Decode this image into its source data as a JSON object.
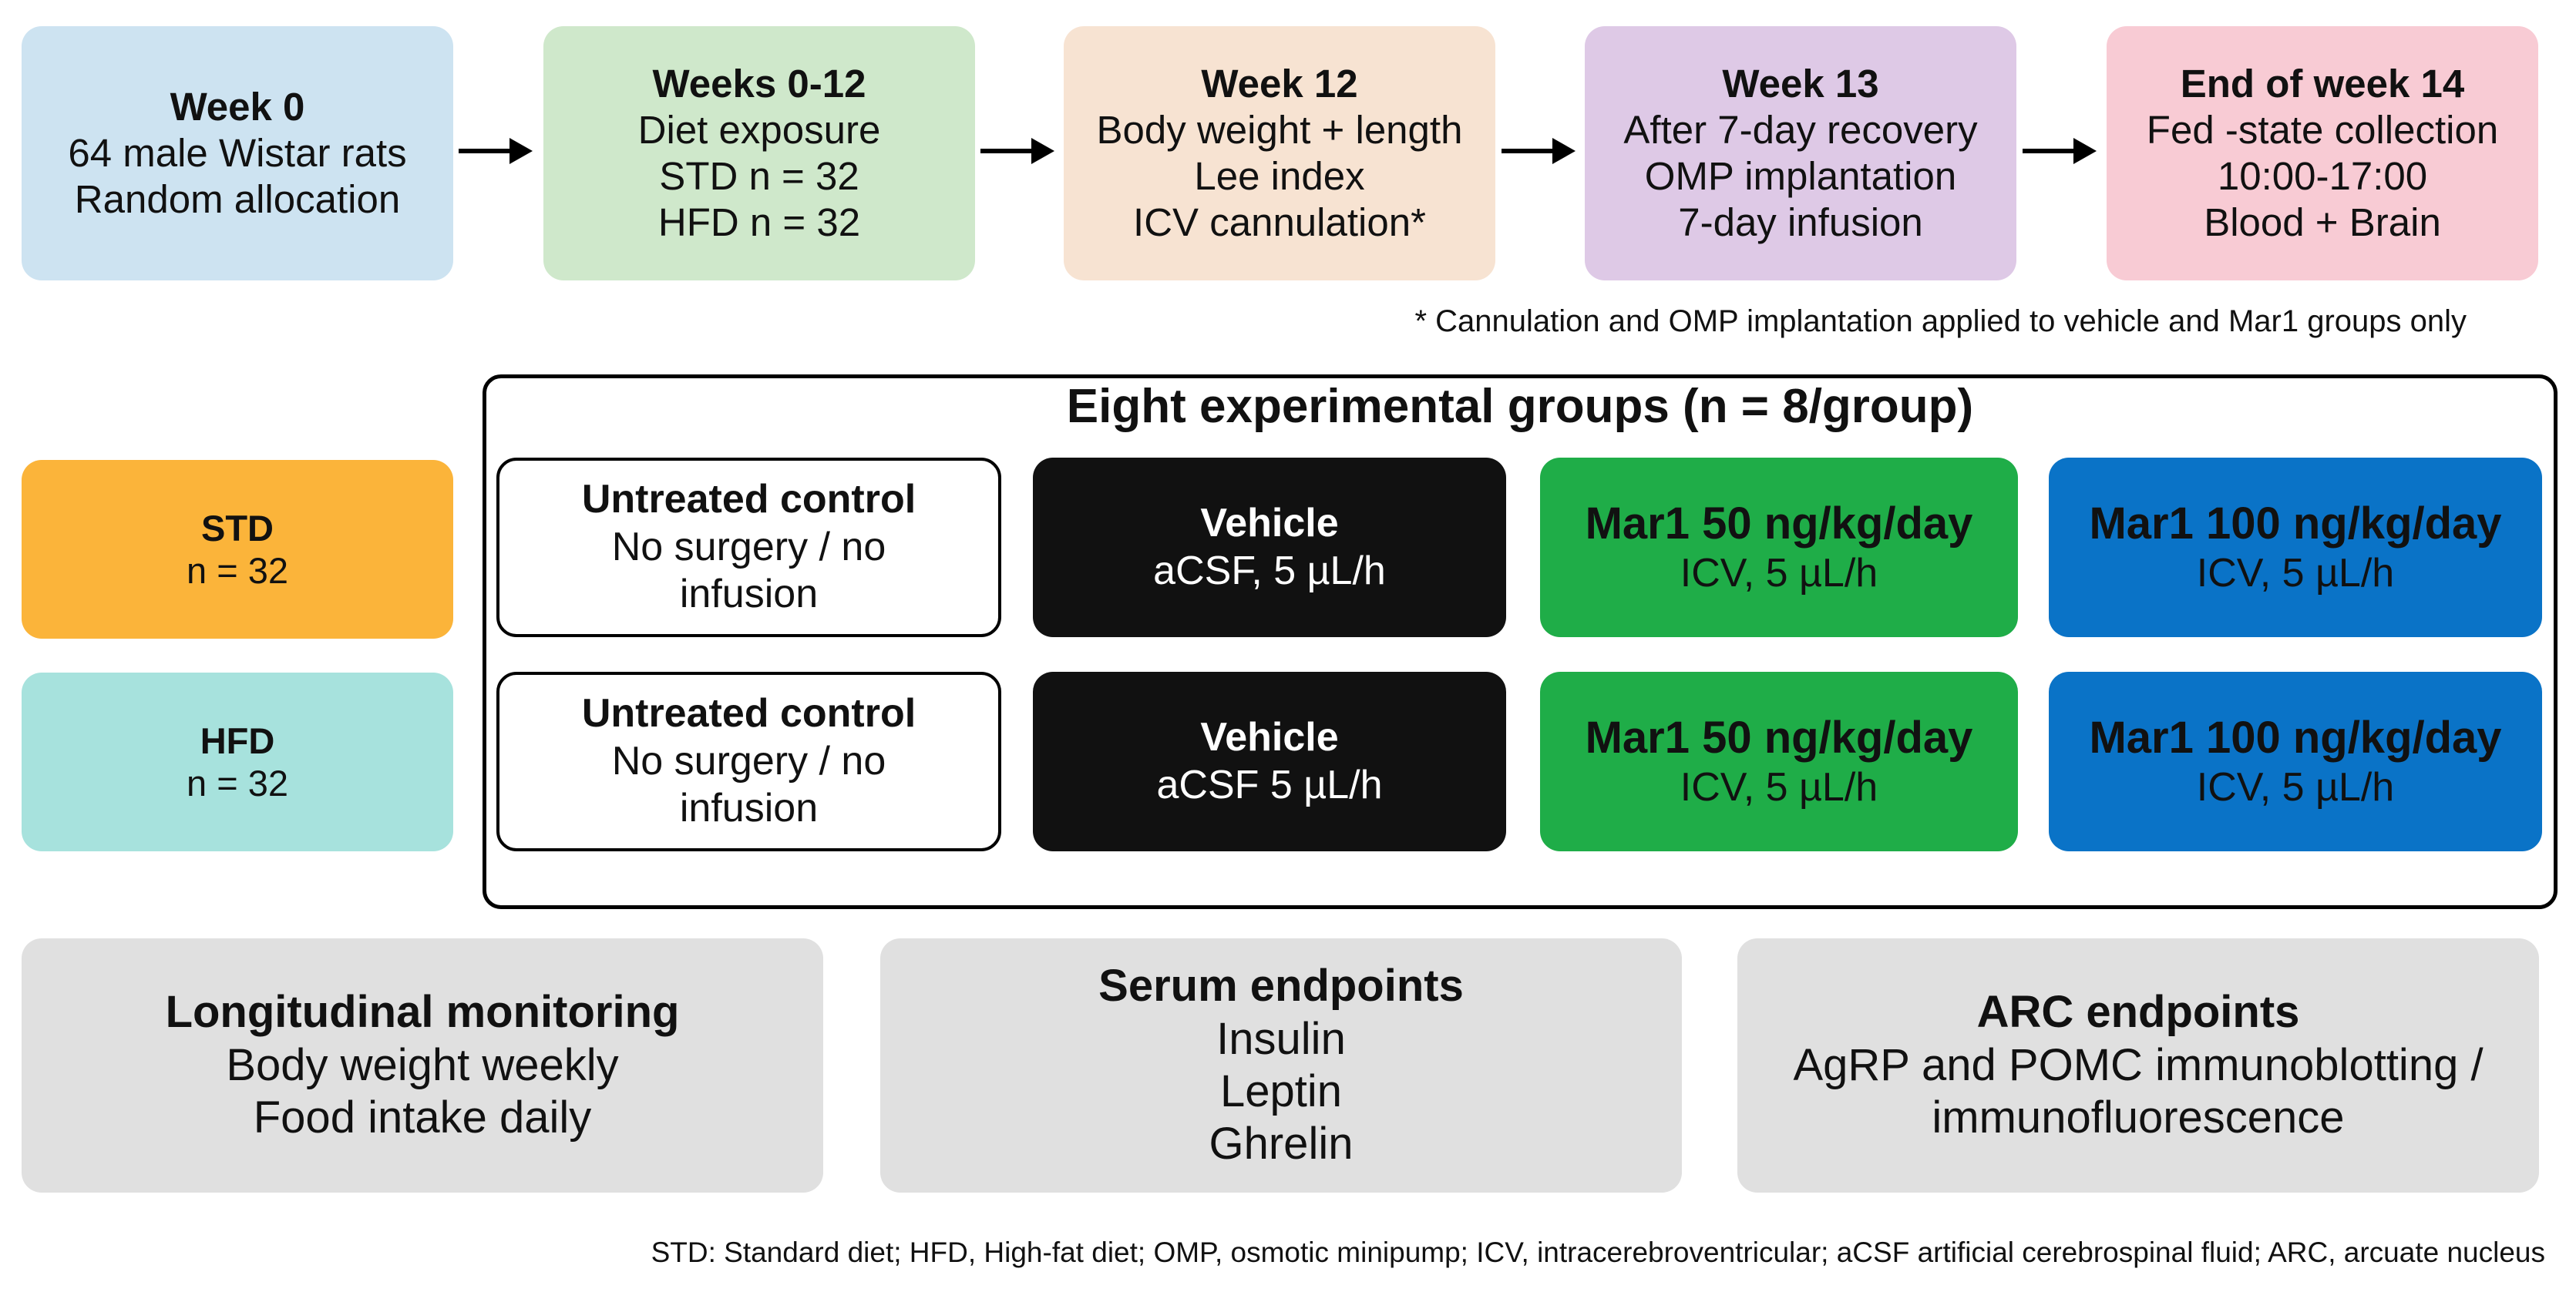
{
  "timeline": [
    {
      "title": "Week 0",
      "lines": [
        "64 male Wistar rats",
        "Random allocation"
      ]
    },
    {
      "title": "Weeks 0-12",
      "lines": [
        "Diet exposure",
        "STD n = 32",
        "HFD n = 32"
      ]
    },
    {
      "title": "Week 12",
      "lines": [
        "Body weight + length",
        "Lee index",
        "ICV cannulation*"
      ]
    },
    {
      "title": "Week 13",
      "lines": [
        "After 7-day recovery",
        "OMP implantation",
        "7-day infusion"
      ]
    },
    {
      "title": "End of week 14",
      "lines": [
        "Fed -state collection",
        "10:00-17:00",
        "Blood + Brain"
      ]
    }
  ],
  "footnote": "* Cannulation and OMP implantation applied to vehicle and Mar1 groups only",
  "diets": [
    {
      "title": "STD",
      "n": "n = 32",
      "color": "#fbb43a"
    },
    {
      "title": "HFD",
      "n": "n = 32",
      "color": "#a7e2dd"
    }
  ],
  "groups_title": "Eight experimental groups (n = 8/group)",
  "groups": {
    "row1": [
      {
        "title": "Untreated control",
        "lines": [
          "No surgery / no",
          "infusion"
        ]
      },
      {
        "title": "Vehicle",
        "lines": [
          "aCSF, 5 µL/h"
        ]
      },
      {
        "title": "Mar1 50 ng/kg/day",
        "lines": [
          "ICV, 5 µL/h"
        ]
      },
      {
        "title": "Mar1 100 ng/kg/day",
        "lines": [
          "ICV, 5 µL/h"
        ]
      }
    ],
    "row2": [
      {
        "title": "Untreated control",
        "lines": [
          "No surgery / no",
          "infusion"
        ]
      },
      {
        "title": "Vehicle",
        "lines": [
          "aCSF 5 µL/h"
        ]
      },
      {
        "title": "Mar1 50 ng/kg/day",
        "lines": [
          "ICV, 5 µL/h"
        ]
      },
      {
        "title": "Mar1 100 ng/kg/day",
        "lines": [
          "ICV, 5 µL/h"
        ]
      }
    ]
  },
  "endpoints": [
    {
      "title": "Longitudinal monitoring",
      "lines": [
        "Body weight weekly",
        "Food intake daily"
      ]
    },
    {
      "title": "Serum endpoints",
      "lines": [
        "Insulin",
        "Leptin",
        "Ghrelin"
      ]
    },
    {
      "title": "ARC endpoints",
      "lines": [
        "AgRP and POMC immunoblotting /",
        "immunofluorescence"
      ]
    }
  ],
  "abbreviations": "STD: Standard diet; HFD, High-fat diet; OMP, osmotic minipump; ICV, intracerebroventricular; aCSF artificial cerebrospinal fluid; ARC, arcuate nucleus"
}
